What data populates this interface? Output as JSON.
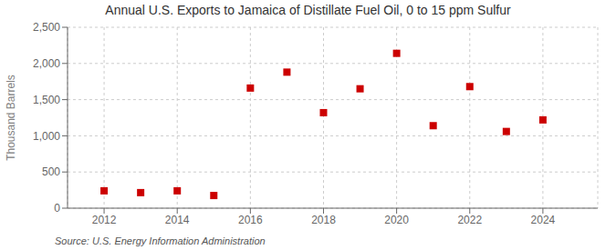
{
  "chart_data": {
    "type": "scatter",
    "title": "Annual U.S. Exports to Jamaica of Distillate Fuel Oil, 0 to 15 ppm Sulfur",
    "ylabel": "Thousand Barrels",
    "source": "Source: U.S. Energy Information Administration",
    "x": [
      2012,
      2013,
      2014,
      2015,
      2016,
      2017,
      2018,
      2019,
      2020,
      2021,
      2022,
      2023,
      2024
    ],
    "values": [
      240,
      215,
      240,
      175,
      1660,
      1880,
      1320,
      1650,
      2140,
      1140,
      1680,
      1060,
      1220
    ],
    "color": "#cc0000",
    "marker": "square",
    "xlim": [
      2011,
      2025.5
    ],
    "xticks": [
      2012,
      2014,
      2016,
      2018,
      2020,
      2022,
      2024
    ],
    "ylim": [
      0,
      2500
    ],
    "yticks": [
      0,
      500,
      {
        "value": 1000,
        "label": "1,000"
      },
      {
        "value": 1500,
        "label": "1,500"
      },
      {
        "value": 2000,
        "label": "2,000"
      },
      {
        "value": 2500,
        "label": "2,500"
      }
    ],
    "grid": true
  }
}
